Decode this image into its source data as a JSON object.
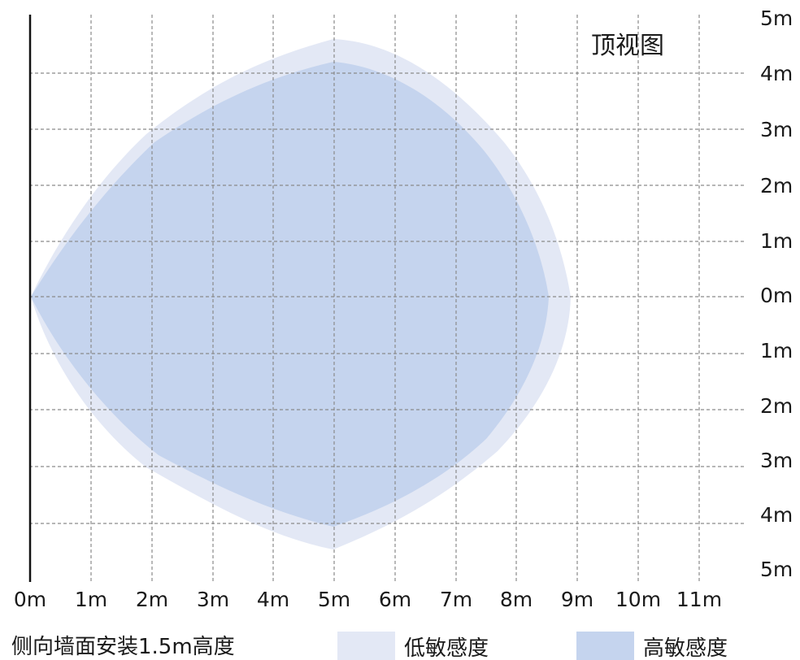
{
  "diagram": {
    "view_title": "顶视图",
    "x_axis_labels": [
      "0m",
      "1m",
      "2m",
      "3m",
      "4m",
      "5m",
      "6m",
      "7m",
      "8m",
      "9m",
      "10m",
      "11m"
    ],
    "y_axis_labels": [
      "5m",
      "4m",
      "3m",
      "2m",
      "1m",
      "0m",
      "1m",
      "2m",
      "3m",
      "4m",
      "5m"
    ],
    "caption": "侧向墙面安装1.5m高度",
    "legend": [
      {
        "label": "低敏感度",
        "color": "#e3e8f5"
      },
      {
        "label": "高敏感度",
        "color": "#c5d4ee"
      }
    ],
    "grid": true,
    "grid_style": "dashed",
    "wall_side": "left"
  }
}
